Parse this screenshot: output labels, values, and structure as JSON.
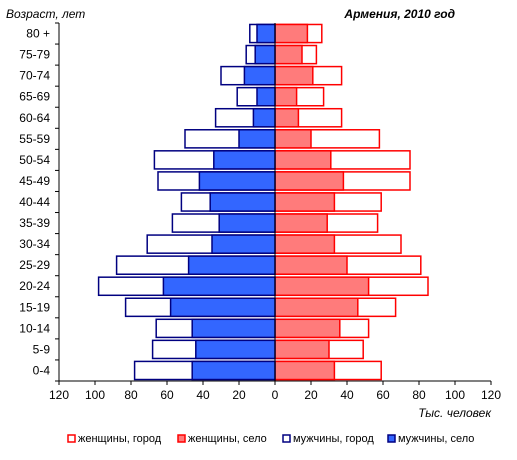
{
  "chart_data": {
    "type": "bar",
    "title": "Армения, 2010 год",
    "ylabel": "Возраст, лет",
    "xlabel": "Тыс. человек",
    "xlim": [
      -120,
      120
    ],
    "x_ticks": [
      -120,
      -100,
      -80,
      -60,
      -40,
      -20,
      0,
      20,
      40,
      60,
      80,
      100,
      120
    ],
    "x_tick_labels": [
      "120",
      "100",
      "80",
      "60",
      "40",
      "20",
      "0",
      "20",
      "40",
      "60",
      "80",
      "100",
      "120"
    ],
    "grid": false,
    "legend_position": "bottom",
    "categories": [
      "0-4",
      "5-9",
      "10-14",
      "15-19",
      "20-24",
      "25-29",
      "30-34",
      "35-39",
      "40-44",
      "45-49",
      "50-54",
      "55-59",
      "60-64",
      "65-69",
      "70-74",
      "75-79",
      "80 +"
    ],
    "series": [
      {
        "name": "женщины, город",
        "side": "right",
        "color": "#ff0000",
        "fill": "#ffffff",
        "values": [
          59,
          49,
          52,
          67,
          85,
          81,
          70,
          57,
          59,
          75,
          75,
          58,
          37,
          27,
          37,
          23,
          26
        ]
      },
      {
        "name": "женщины, село",
        "side": "right",
        "color": "#ff0000",
        "fill": "#ff7b7b",
        "values": [
          33,
          30,
          36,
          46,
          52,
          40,
          33,
          29,
          33,
          38,
          31,
          20,
          13,
          12,
          21,
          15,
          18
        ]
      },
      {
        "name": "мужчины, город",
        "side": "left",
        "color": "#000080",
        "fill": "#ffffff",
        "values": [
          78,
          68,
          66,
          83,
          98,
          88,
          71,
          57,
          52,
          65,
          67,
          50,
          33,
          21,
          30,
          16,
          14
        ]
      },
      {
        "name": "мужчины, село",
        "side": "left",
        "color": "#000080",
        "fill": "#3366ff",
        "values": [
          46,
          44,
          46,
          58,
          62,
          48,
          35,
          31,
          36,
          42,
          34,
          20,
          12,
          10,
          17,
          11,
          10
        ]
      }
    ]
  }
}
